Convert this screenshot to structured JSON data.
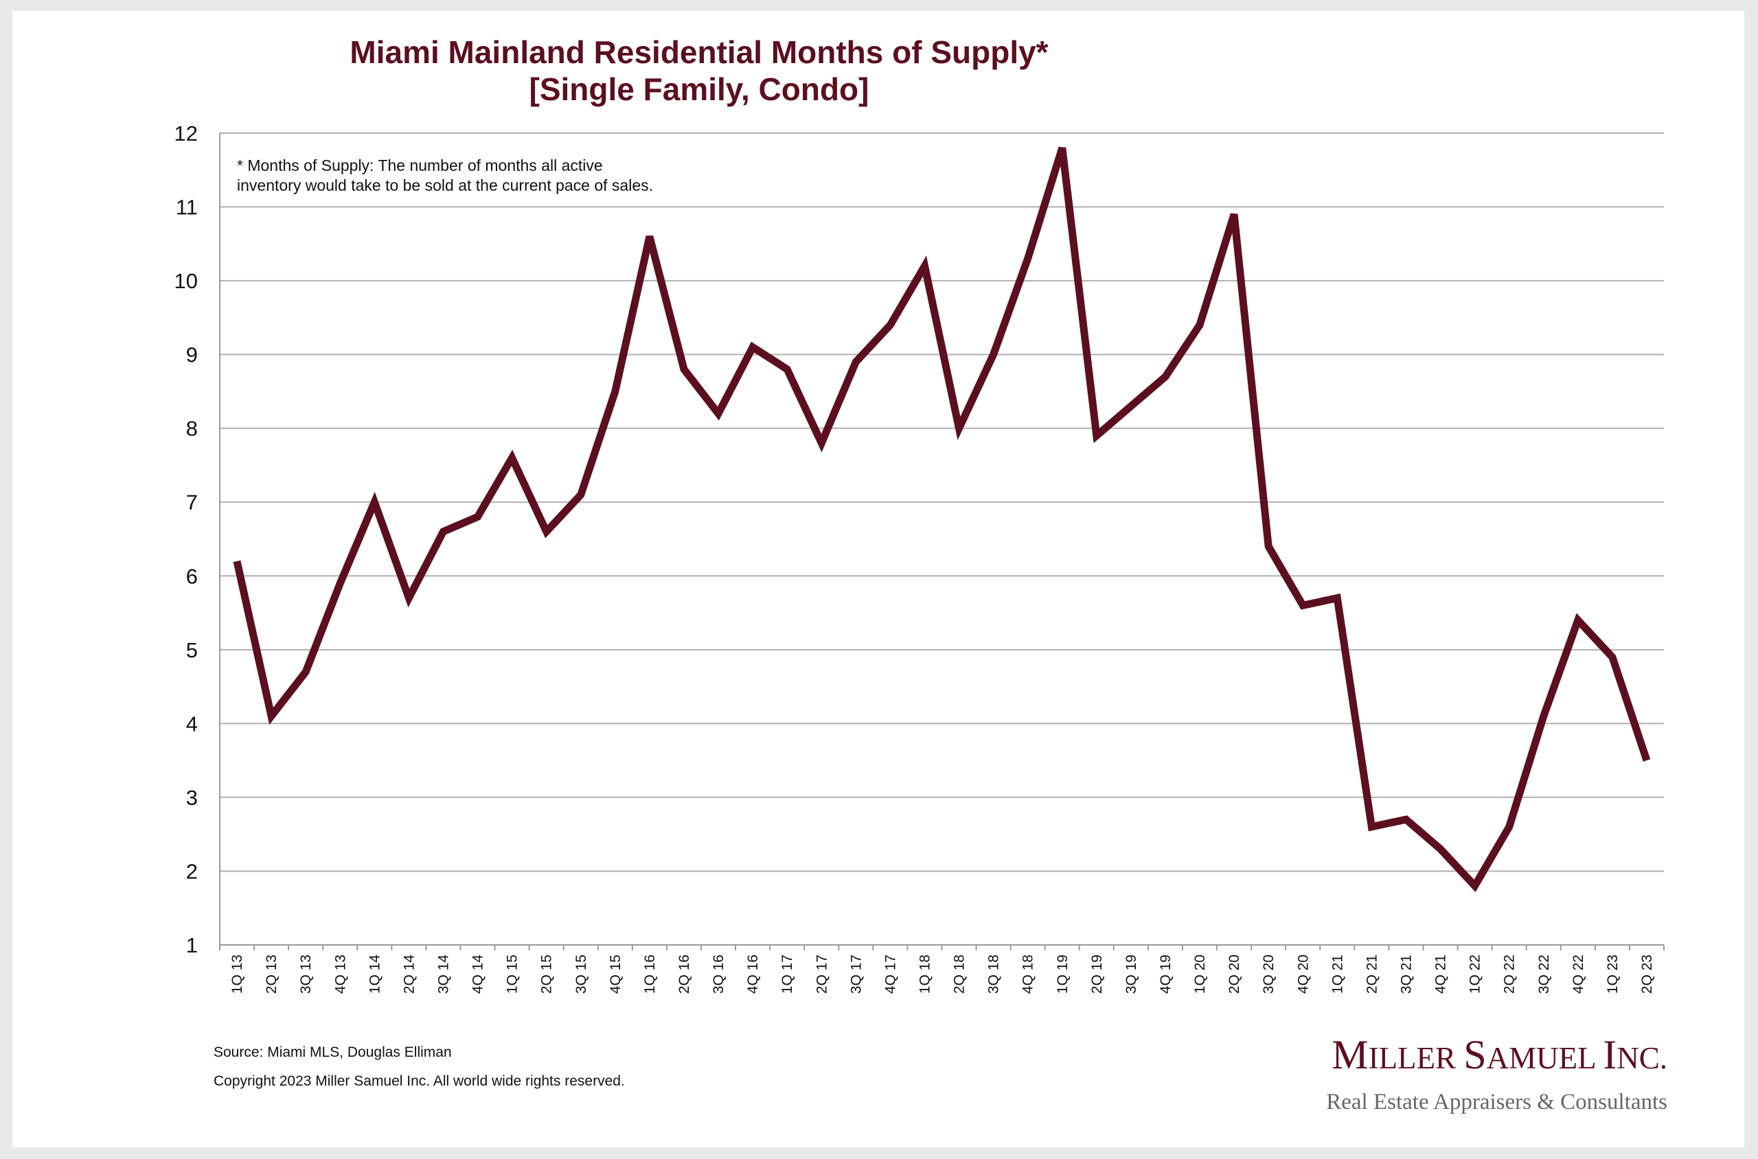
{
  "chart_data": {
    "type": "line",
    "title_lines": [
      "Miami Mainland Residential Months of Supply*",
      "[Single Family, Condo]"
    ],
    "note_lines": [
      "* Months of Supply: The number of months all active",
      "inventory would take to be sold at the current pace of sales."
    ],
    "categories": [
      "1Q 13",
      "2Q 13",
      "3Q 13",
      "4Q 13",
      "1Q 14",
      "2Q 14",
      "3Q 14",
      "4Q 14",
      "1Q 15",
      "2Q 15",
      "3Q 15",
      "4Q 15",
      "1Q 16",
      "2Q 16",
      "3Q 16",
      "4Q 16",
      "1Q 17",
      "2Q 17",
      "3Q 17",
      "4Q 17",
      "1Q 18",
      "2Q 18",
      "3Q 18",
      "4Q 18",
      "1Q 19",
      "2Q 19",
      "3Q 19",
      "4Q 19",
      "1Q 20",
      "2Q 20",
      "3Q 20",
      "4Q 20",
      "1Q 21",
      "2Q 21",
      "3Q 21",
      "4Q 21",
      "1Q 22",
      "2Q 22",
      "3Q 22",
      "4Q 22",
      "1Q 23",
      "2Q 23"
    ],
    "values": [
      6.2,
      4.1,
      4.7,
      5.9,
      7.0,
      5.7,
      6.6,
      6.8,
      7.6,
      6.6,
      7.1,
      8.5,
      10.6,
      8.8,
      8.2,
      9.1,
      8.8,
      7.8,
      8.9,
      9.4,
      10.2,
      8.0,
      9.0,
      10.3,
      11.8,
      7.9,
      8.3,
      8.7,
      9.4,
      10.9,
      6.4,
      5.6,
      5.7,
      2.6,
      2.7,
      2.3,
      1.8,
      2.6,
      4.1,
      5.4,
      4.9,
      3.5
    ],
    "ylim": [
      1,
      12
    ],
    "yticks": [
      "1",
      "2",
      "3",
      "4",
      "5",
      "6",
      "7",
      "8",
      "9",
      "10",
      "11",
      "12"
    ],
    "grid": true,
    "line_color": "#5c0f1f",
    "gridline_color": "#b0b0b0"
  },
  "footer": {
    "source": "Source: Miami MLS, Douglas Elliman",
    "copyright": "Copyright 2023 Miller Samuel Inc.  All world wide rights reserved."
  },
  "logo": {
    "name": "Miller Samuel Inc.",
    "tagline": "Real Estate Appraisers & Consultants",
    "color": "#5c0f1f"
  }
}
